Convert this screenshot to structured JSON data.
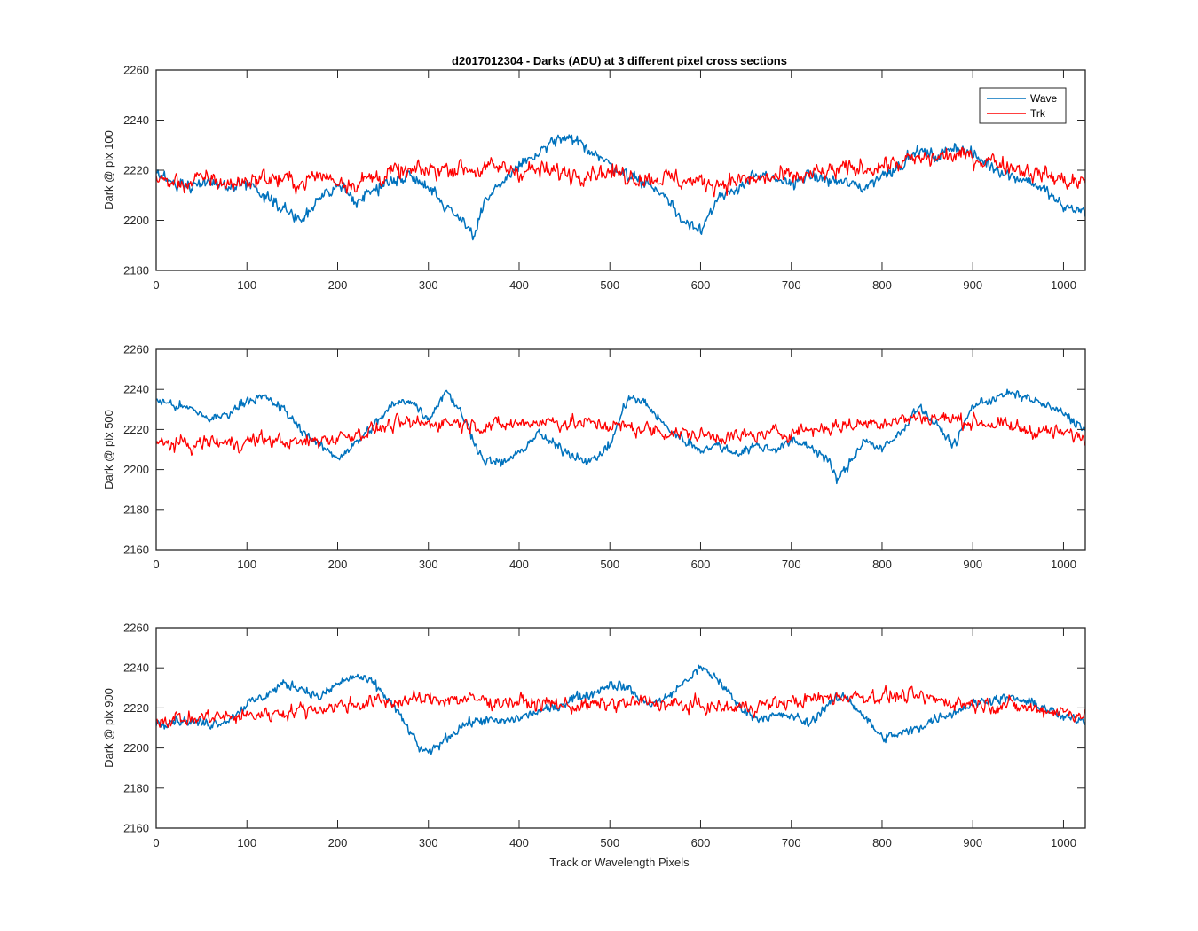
{
  "title": "d2017012304 - Darks (ADU) at 3 different pixel cross sections",
  "xlabel": "Track or Wavelength Pixels",
  "colors": {
    "wave": "#0072BD",
    "trk": "#FF0000",
    "axes": "#262626"
  },
  "legend": {
    "entries": [
      "Wave",
      "Trk"
    ],
    "location": "top-right",
    "panel": 0
  },
  "chart_data": [
    {
      "type": "line",
      "ylabel": "Dark @ pix 100",
      "xlim": [
        0,
        1024
      ],
      "ylim": [
        2180,
        2260
      ],
      "xticks": [
        0,
        100,
        200,
        300,
        400,
        500,
        600,
        700,
        800,
        900,
        1000
      ],
      "xtick_labels": [
        "0",
        "100",
        "200",
        "300",
        "400",
        "500",
        "600",
        "700",
        "800",
        "900",
        "1000"
      ],
      "yticks": [
        2180,
        2200,
        2220,
        2240,
        2260
      ],
      "ytick_labels": [
        "2180",
        "2200",
        "2220",
        "2240",
        "2260"
      ],
      "grid": false,
      "series": [
        {
          "name": "Wave",
          "x": [
            0,
            20,
            40,
            60,
            80,
            100,
            120,
            140,
            160,
            180,
            200,
            220,
            240,
            260,
            280,
            300,
            320,
            340,
            350,
            360,
            380,
            400,
            420,
            440,
            460,
            480,
            500,
            520,
            540,
            560,
            580,
            600,
            620,
            640,
            660,
            680,
            700,
            720,
            740,
            760,
            780,
            800,
            820,
            840,
            860,
            880,
            900,
            920,
            940,
            960,
            980,
            1000,
            1024
          ],
          "y": [
            2218,
            2215,
            2214,
            2216,
            2213,
            2215,
            2210,
            2205,
            2200,
            2208,
            2214,
            2208,
            2212,
            2216,
            2218,
            2214,
            2205,
            2200,
            2193,
            2205,
            2215,
            2222,
            2226,
            2232,
            2232,
            2228,
            2222,
            2218,
            2215,
            2210,
            2200,
            2197,
            2208,
            2213,
            2218,
            2216,
            2215,
            2218,
            2216,
            2215,
            2213,
            2218,
            2222,
            2228,
            2225,
            2230,
            2226,
            2222,
            2218,
            2216,
            2212,
            2205,
            2204
          ],
          "range": [
            2183,
            2244
          ]
        },
        {
          "name": "Trk",
          "x": [
            0,
            20,
            40,
            60,
            80,
            100,
            120,
            140,
            160,
            180,
            200,
            220,
            240,
            260,
            280,
            300,
            320,
            340,
            360,
            380,
            400,
            420,
            440,
            460,
            480,
            500,
            520,
            540,
            560,
            580,
            600,
            620,
            640,
            660,
            680,
            700,
            720,
            740,
            760,
            780,
            800,
            820,
            840,
            860,
            880,
            900,
            920,
            940,
            960,
            980,
            1000,
            1024
          ],
          "y": [
            2216,
            2215,
            2215,
            2217,
            2214,
            2216,
            2217,
            2216,
            2215,
            2218,
            2216,
            2215,
            2217,
            2219,
            2219,
            2220,
            2221,
            2221,
            2220,
            2221,
            2220,
            2220,
            2219,
            2219,
            2220,
            2219,
            2218,
            2217,
            2217,
            2216,
            2215,
            2215,
            2216,
            2216,
            2217,
            2217,
            2218,
            2219,
            2220,
            2221,
            2222,
            2223,
            2224,
            2225,
            2226,
            2225,
            2224,
            2222,
            2220,
            2218,
            2216,
            2215
          ],
          "range": [
            2184,
            2249
          ]
        }
      ]
    },
    {
      "type": "line",
      "ylabel": "Dark @ pix 500",
      "xlim": [
        0,
        1024
      ],
      "ylim": [
        2160,
        2260
      ],
      "xticks": [
        0,
        100,
        200,
        300,
        400,
        500,
        600,
        700,
        800,
        900,
        1000
      ],
      "xtick_labels": [
        "0",
        "100",
        "200",
        "300",
        "400",
        "500",
        "600",
        "700",
        "800",
        "900",
        "1000"
      ],
      "yticks": [
        2160,
        2180,
        2200,
        2220,
        2240,
        2260
      ],
      "ytick_labels": [
        "2160",
        "2180",
        "2200",
        "2220",
        "2240",
        "2260"
      ],
      "grid": false,
      "series": [
        {
          "name": "Wave",
          "x": [
            0,
            20,
            40,
            60,
            80,
            100,
            120,
            140,
            160,
            180,
            200,
            220,
            240,
            260,
            280,
            300,
            320,
            340,
            360,
            380,
            400,
            420,
            440,
            460,
            480,
            500,
            520,
            540,
            560,
            580,
            600,
            620,
            640,
            660,
            680,
            700,
            720,
            740,
            750,
            760,
            780,
            800,
            820,
            840,
            860,
            880,
            900,
            920,
            940,
            960,
            980,
            1000,
            1024
          ],
          "y": [
            2235,
            2232,
            2230,
            2225,
            2228,
            2235,
            2236,
            2230,
            2220,
            2212,
            2206,
            2213,
            2222,
            2232,
            2235,
            2225,
            2240,
            2225,
            2205,
            2203,
            2208,
            2218,
            2212,
            2207,
            2204,
            2212,
            2236,
            2233,
            2222,
            2215,
            2210,
            2212,
            2208,
            2212,
            2210,
            2214,
            2212,
            2205,
            2195,
            2200,
            2215,
            2210,
            2218,
            2232,
            2222,
            2212,
            2232,
            2235,
            2238,
            2236,
            2232,
            2228,
            2220
          ],
          "range": [
            2186,
            2250
          ]
        },
        {
          "name": "Trk",
          "x": [
            0,
            20,
            40,
            60,
            80,
            100,
            120,
            140,
            160,
            180,
            200,
            220,
            240,
            260,
            280,
            300,
            320,
            340,
            360,
            380,
            400,
            420,
            440,
            460,
            480,
            500,
            520,
            540,
            560,
            580,
            600,
            620,
            640,
            660,
            680,
            700,
            720,
            740,
            760,
            780,
            800,
            820,
            840,
            860,
            880,
            900,
            920,
            940,
            960,
            980,
            1000,
            1024
          ],
          "y": [
            2212,
            2213,
            2212,
            2214,
            2213,
            2214,
            2215,
            2214,
            2213,
            2215,
            2216,
            2218,
            2220,
            2222,
            2223,
            2223,
            2224,
            2223,
            2222,
            2222,
            2223,
            2224,
            2224,
            2223,
            2223,
            2222,
            2221,
            2220,
            2219,
            2218,
            2217,
            2217,
            2216,
            2217,
            2218,
            2219,
            2220,
            2221,
            2222,
            2223,
            2224,
            2225,
            2226,
            2226,
            2225,
            2224,
            2223,
            2221,
            2220,
            2219,
            2218,
            2216
          ],
          "range": [
            2179,
            2251
          ]
        }
      ]
    },
    {
      "type": "line",
      "ylabel": "Dark @ pix 900",
      "xlim": [
        0,
        1024
      ],
      "ylim": [
        2160,
        2260
      ],
      "xticks": [
        0,
        100,
        200,
        300,
        400,
        500,
        600,
        700,
        800,
        900,
        1000
      ],
      "xtick_labels": [
        "0",
        "100",
        "200",
        "300",
        "400",
        "500",
        "600",
        "700",
        "800",
        "900",
        "1000"
      ],
      "yticks": [
        2160,
        2180,
        2200,
        2220,
        2240,
        2260
      ],
      "ytick_labels": [
        "2160",
        "2180",
        "2200",
        "2220",
        "2240",
        "2260"
      ],
      "grid": false,
      "series": [
        {
          "name": "Wave",
          "x": [
            0,
            20,
            40,
            60,
            80,
            100,
            120,
            140,
            160,
            180,
            200,
            220,
            240,
            260,
            280,
            290,
            300,
            320,
            340,
            360,
            380,
            400,
            420,
            440,
            460,
            480,
            500,
            520,
            540,
            560,
            580,
            600,
            620,
            640,
            660,
            680,
            700,
            720,
            740,
            760,
            780,
            800,
            820,
            840,
            860,
            880,
            900,
            920,
            940,
            960,
            980,
            1000,
            1024
          ],
          "y": [
            2212,
            2214,
            2213,
            2212,
            2214,
            2222,
            2226,
            2232,
            2230,
            2225,
            2232,
            2236,
            2232,
            2222,
            2208,
            2200,
            2197,
            2205,
            2212,
            2214,
            2213,
            2215,
            2218,
            2220,
            2225,
            2227,
            2232,
            2230,
            2222,
            2224,
            2232,
            2240,
            2234,
            2222,
            2215,
            2216,
            2216,
            2212,
            2222,
            2226,
            2216,
            2205,
            2207,
            2210,
            2215,
            2218,
            2222,
            2224,
            2225,
            2223,
            2220,
            2215,
            2214
          ],
          "range": [
            2188,
            2244
          ]
        },
        {
          "name": "Trk",
          "x": [
            0,
            20,
            40,
            60,
            80,
            100,
            120,
            140,
            160,
            180,
            200,
            220,
            240,
            260,
            280,
            300,
            320,
            340,
            360,
            380,
            400,
            420,
            440,
            460,
            480,
            500,
            520,
            540,
            560,
            580,
            600,
            620,
            640,
            660,
            680,
            700,
            720,
            740,
            760,
            780,
            800,
            820,
            840,
            860,
            880,
            900,
            920,
            940,
            960,
            980,
            1000,
            1024
          ],
          "y": [
            2214,
            2215,
            2214,
            2216,
            2215,
            2216,
            2217,
            2218,
            2219,
            2220,
            2221,
            2222,
            2223,
            2223,
            2224,
            2224,
            2225,
            2224,
            2224,
            2223,
            2223,
            2222,
            2222,
            2221,
            2221,
            2222,
            2222,
            2223,
            2222,
            2221,
            2221,
            2220,
            2220,
            2221,
            2222,
            2223,
            2224,
            2225,
            2226,
            2226,
            2226,
            2226,
            2225,
            2224,
            2223,
            2222,
            2222,
            2221,
            2220,
            2219,
            2218,
            2217
          ],
          "range": [
            2175,
            2249
          ]
        }
      ]
    }
  ]
}
